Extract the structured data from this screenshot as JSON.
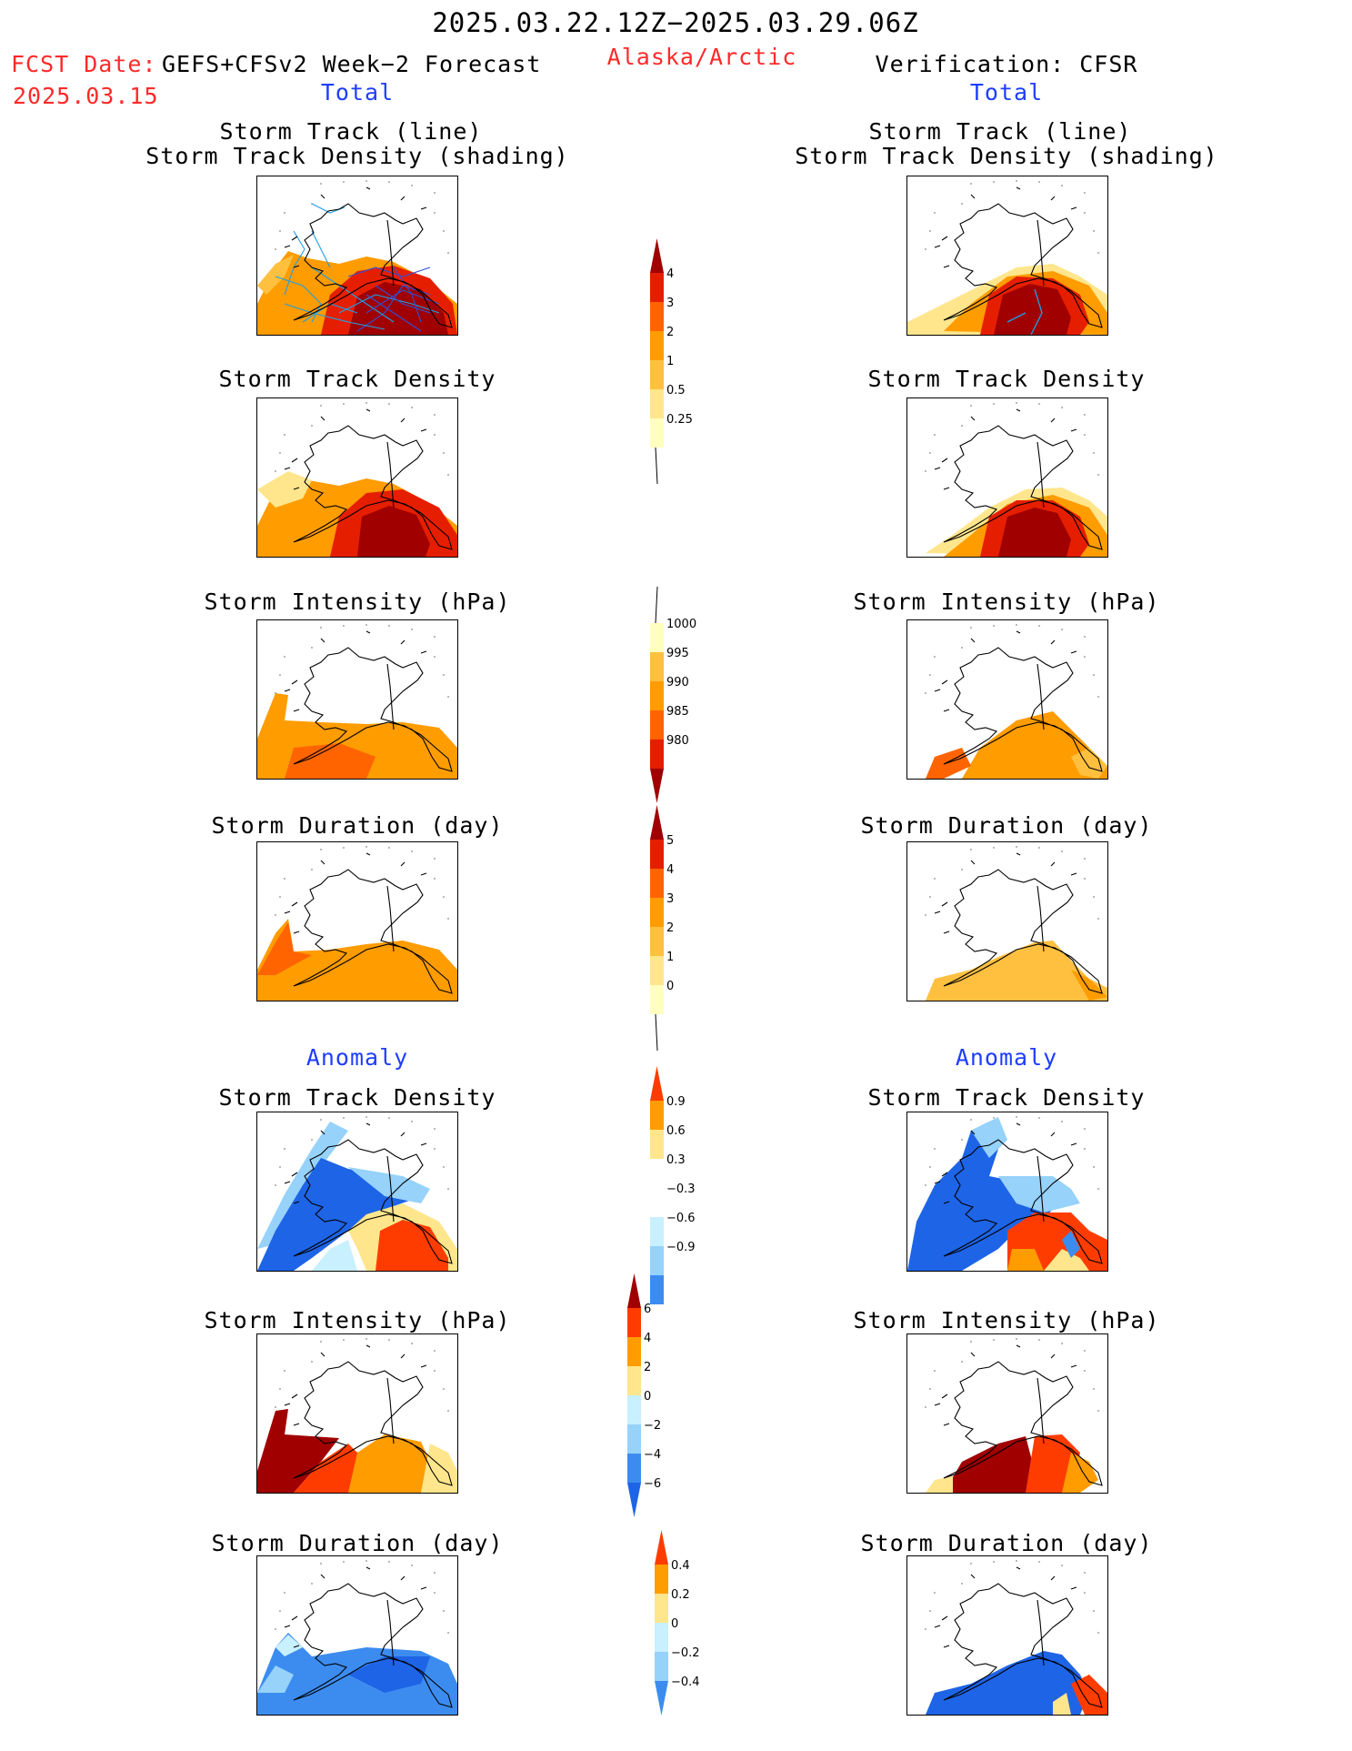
{
  "header": {
    "date_range": "2025.03.22.12Z−2025.03.29.06Z",
    "fcst_label": "FCST Date:",
    "fcst_date": "2025.03.15",
    "model": "GEFS+CFSv2 Week−2 Forecast",
    "region": "Alaska/Arctic",
    "verification": "Verification: CFSR"
  },
  "sections": {
    "total": "Total",
    "anomaly": "Anomaly"
  },
  "titles": {
    "track_line": "Storm Track (line)",
    "track_shading": "Storm Track Density (shading)",
    "density": "Storm Track Density",
    "intensity": "Storm Intensity (hPa)",
    "duration": "Storm Duration (day)"
  },
  "colorbars": {
    "density": [
      "4",
      "3",
      "2",
      "1",
      "0.5",
      "0.25"
    ],
    "intensity": [
      "1000",
      "995",
      "990",
      "985",
      "980"
    ],
    "duration": [
      "5",
      "4",
      "3",
      "2",
      "1",
      "0"
    ],
    "anom_density": [
      "0.9",
      "0.6",
      "0.3",
      "−0.3",
      "−0.6",
      "−0.9"
    ],
    "anom_intensity": [
      "6",
      "4",
      "2",
      "0",
      "−2",
      "−4",
      "−6"
    ],
    "anom_duration": [
      "0.4",
      "0.2",
      "0",
      "−0.2",
      "−0.4"
    ]
  },
  "colors": {
    "density": [
      "#ffffc0",
      "#ffe68c",
      "#ffc040",
      "#ff9c00",
      "#ff6400",
      "#e61e00",
      "#a00000"
    ],
    "intensity": [
      "#ffffc0",
      "#ffc040",
      "#ff9c00",
      "#ff6400",
      "#e61e00",
      "#a00000"
    ],
    "anomaly": [
      "#1e64e6",
      "#3c8cf0",
      "#96d2fa",
      "#c8f0ff",
      "#ffffff",
      "#ffe68c",
      "#ff9c00",
      "#ff3c00",
      "#a00000"
    ],
    "track_line": "#1ea0e6"
  }
}
